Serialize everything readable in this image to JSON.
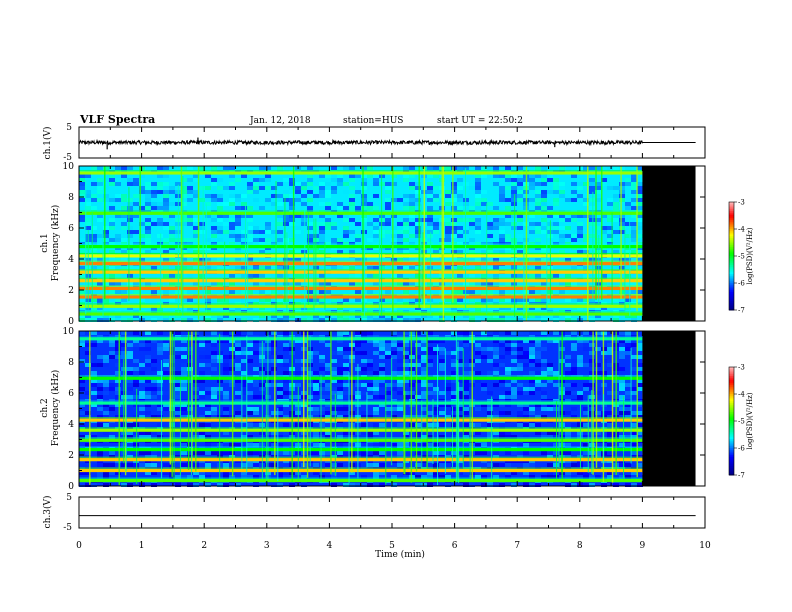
{
  "header": {
    "title": "VLF Spectra",
    "date": "Jan. 12, 2018",
    "station": "station=HUS",
    "start": "start UT =  22:50:2"
  },
  "chart_data": [
    {
      "type": "line",
      "name": "ch1-waveform",
      "ylabel": "ch.1(V)",
      "xlim": [
        0,
        10
      ],
      "ylim": [
        -5,
        5
      ],
      "yticks": [
        "5",
        "-5"
      ],
      "trace_level": 0,
      "trace_noise": 0.6,
      "trace_end": 9.0,
      "spikes": [
        {
          "x": 0.45,
          "y": -2.2
        },
        {
          "x": 1.9,
          "y": 1.6
        },
        {
          "x": 7.6,
          "y": -1.5
        }
      ],
      "flat_after": {
        "x": [
          9.0,
          9.85
        ],
        "y": 0
      }
    },
    {
      "type": "heatmap",
      "name": "ch1-spectrogram",
      "ylabel": "Frequency (kHz)",
      "channel_label": "ch.1",
      "xlim": [
        0,
        10
      ],
      "ylim": [
        0,
        10
      ],
      "yticks": [
        "0",
        "2",
        "4",
        "6",
        "8",
        "10"
      ],
      "data_end": 9.0,
      "blank_end": 9.85,
      "bands": [
        {
          "f": 0.45,
          "level": 0.55
        },
        {
          "f": 0.95,
          "level": 0.6
        },
        {
          "f": 1.55,
          "level": 0.75
        },
        {
          "f": 2.1,
          "level": 0.75
        },
        {
          "f": 2.6,
          "level": 0.7
        },
        {
          "f": 3.15,
          "level": 0.7
        },
        {
          "f": 3.7,
          "level": 0.75
        },
        {
          "f": 4.2,
          "level": 0.65
        },
        {
          "f": 4.8,
          "level": 0.5
        },
        {
          "f": 6.95,
          "level": 0.55
        },
        {
          "f": 9.55,
          "level": 0.6
        }
      ],
      "background_level": 0.32,
      "upper_level": 0.3,
      "spike_density": 0.35,
      "colorbar": {
        "ticks": [
          "-3",
          "-4",
          "-5",
          "-6",
          "-7"
        ],
        "label": "log(PSD)(V²/Hz)",
        "range": [
          -7,
          -3
        ]
      }
    },
    {
      "type": "heatmap",
      "name": "ch2-spectrogram",
      "ylabel": "Frequency (kHz)",
      "channel_label": "ch.2",
      "xlim": [
        0,
        10
      ],
      "ylim": [
        0,
        10
      ],
      "yticks": [
        "0",
        "2",
        "4",
        "6",
        "8",
        "10"
      ],
      "data_end": 9.0,
      "blank_end": 9.85,
      "bands": [
        {
          "f": 0.35,
          "level": 0.55
        },
        {
          "f": 1.0,
          "level": 0.7
        },
        {
          "f": 1.7,
          "level": 0.7
        },
        {
          "f": 2.35,
          "level": 0.5
        },
        {
          "f": 2.95,
          "level": 0.55
        },
        {
          "f": 3.6,
          "level": 0.6
        },
        {
          "f": 4.25,
          "level": 0.7
        },
        {
          "f": 5.35,
          "level": 0.4
        },
        {
          "f": 6.95,
          "level": 0.5
        },
        {
          "f": 9.5,
          "level": 0.4
        }
      ],
      "background_level": 0.2,
      "upper_level": 0.22,
      "spike_density": 0.45,
      "colorbar": {
        "ticks": [
          "-3",
          "-4",
          "-5",
          "-6",
          "-7"
        ],
        "label": "log(PSD)(V²/Hz)",
        "range": [
          -7,
          -3
        ]
      }
    },
    {
      "type": "line",
      "name": "ch3-waveform",
      "ylabel": "ch.3(V)",
      "xlim": [
        0,
        10
      ],
      "ylim": [
        -5,
        5
      ],
      "yticks": [
        "5",
        "-5"
      ],
      "trace_level": -1,
      "trace_end": 9.85
    }
  ],
  "xaxis": {
    "label": "Time (min)",
    "ticks": [
      "0",
      "1",
      "2",
      "3",
      "4",
      "5",
      "6",
      "7",
      "8",
      "9",
      "10"
    ]
  },
  "colors": {
    "jet": [
      "#000080",
      "#0000ff",
      "#00ffff",
      "#00ff00",
      "#ffff00",
      "#ff0000",
      "#ffffff"
    ]
  }
}
